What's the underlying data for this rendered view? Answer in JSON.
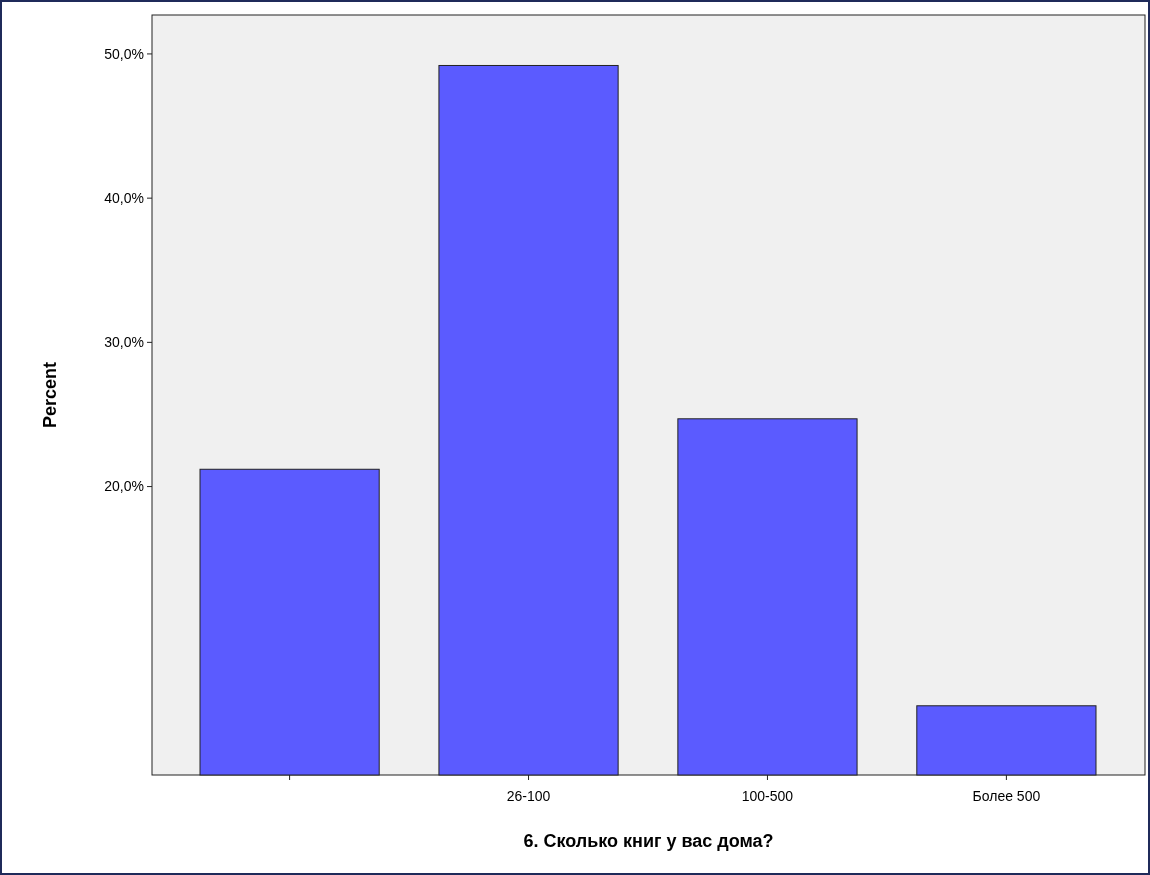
{
  "chart_data": {
    "type": "bar",
    "xlabel": "6. Сколько книг у вас дома?",
    "ylabel": "Percent",
    "categories": [
      null,
      "26-100",
      "100-500",
      "Более 500"
    ],
    "values": [
      21.2,
      49.2,
      24.7,
      4.8
    ],
    "color": "#5b5bff",
    "ylim": [
      0,
      52.7
    ],
    "yticks": [
      {
        "value": 20,
        "label": "20,0%"
      },
      {
        "value": 30,
        "label": "30,0%"
      },
      {
        "value": 40,
        "label": "40,0%"
      },
      {
        "value": 50,
        "label": "50,0%"
      }
    ],
    "grid": false
  }
}
